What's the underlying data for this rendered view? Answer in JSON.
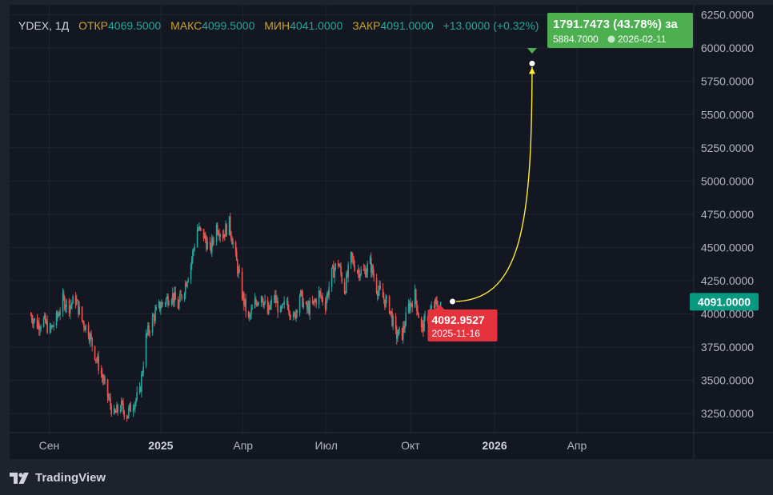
{
  "header": {
    "symbol": "YDEX, 1Д",
    "open_label": "ОТКР",
    "open": "4069.5000",
    "high_label": "МАКС",
    "high": "4099.5000",
    "low_label": "МИН",
    "low": "4041.0000",
    "close_label": "ЗАКР",
    "close": "4091.0000",
    "change": "+13.0000 (+0.32%)"
  },
  "footer": {
    "brand": "TradingView",
    "logo_icon": "tradingview-logo-icon"
  },
  "colors": {
    "up": "#26a69a",
    "down": "#ef5350",
    "forecast": "#ffeb3b",
    "target_bg": "#4caf50",
    "start_bg": "#e5333d",
    "last_price_bg": "#089981"
  },
  "chart_data": {
    "type": "candlestick",
    "ylim": [
      3100,
      6290
    ],
    "y_ticks": [
      "6250.0000",
      "6000.0000",
      "5750.0000",
      "5500.0000",
      "5250.0000",
      "5000.0000",
      "4750.0000",
      "4500.0000",
      "4250.0000",
      "4000.0000",
      "3750.0000",
      "3500.0000",
      "3250.0000"
    ],
    "y_tick_values": [
      6250,
      6000,
      5750,
      5500,
      5250,
      5000,
      4750,
      4500,
      4250,
      4000,
      3750,
      3500,
      3250
    ],
    "x_ticks": [
      {
        "label": "Сен",
        "date": "2024-09-01",
        "bold": false
      },
      {
        "label": "2025",
        "date": "2025-01-01",
        "bold": true
      },
      {
        "label": "Апр",
        "date": "2025-04-01",
        "bold": false
      },
      {
        "label": "Июл",
        "date": "2025-07-01",
        "bold": false
      },
      {
        "label": "Окт",
        "date": "2025-10-01",
        "bold": false
      },
      {
        "label": "2026",
        "date": "2026-01-01",
        "bold": true
      },
      {
        "label": "Апр",
        "date": "2026-04-01",
        "bold": false
      }
    ],
    "close_path": [
      [
        "2024-08-12",
        3990
      ],
      [
        "2024-08-19",
        3920
      ],
      [
        "2024-08-26",
        3950
      ],
      [
        "2024-09-02",
        3870
      ],
      [
        "2024-09-09",
        3960
      ],
      [
        "2024-09-16",
        4100
      ],
      [
        "2024-09-23",
        4060
      ],
      [
        "2024-09-30",
        4110
      ],
      [
        "2024-10-07",
        3950
      ],
      [
        "2024-10-14",
        3870
      ],
      [
        "2024-10-21",
        3700
      ],
      [
        "2024-10-28",
        3550
      ],
      [
        "2024-11-04",
        3380
      ],
      [
        "2024-11-11",
        3230
      ],
      [
        "2024-11-18",
        3310
      ],
      [
        "2024-11-25",
        3240
      ],
      [
        "2024-12-02",
        3330
      ],
      [
        "2024-12-09",
        3400
      ],
      [
        "2024-12-16",
        3820
      ],
      [
        "2024-12-23",
        3960
      ],
      [
        "2024-12-30",
        4050
      ],
      [
        "2025-01-06",
        4100
      ],
      [
        "2025-01-13",
        4150
      ],
      [
        "2025-01-20",
        4060
      ],
      [
        "2025-01-27",
        4200
      ],
      [
        "2025-02-03",
        4380
      ],
      [
        "2025-02-10",
        4640
      ],
      [
        "2025-02-17",
        4590
      ],
      [
        "2025-02-24",
        4470
      ],
      [
        "2025-03-03",
        4660
      ],
      [
        "2025-03-10",
        4600
      ],
      [
        "2025-03-17",
        4680
      ],
      [
        "2025-03-24",
        4420
      ],
      [
        "2025-03-31",
        4150
      ],
      [
        "2025-04-07",
        3950
      ],
      [
        "2025-04-14",
        4080
      ],
      [
        "2025-04-21",
        4150
      ],
      [
        "2025-04-28",
        4000
      ],
      [
        "2025-05-05",
        4130
      ],
      [
        "2025-05-12",
        4000
      ],
      [
        "2025-05-19",
        4100
      ],
      [
        "2025-05-26",
        3950
      ],
      [
        "2025-06-02",
        4150
      ],
      [
        "2025-06-09",
        4030
      ],
      [
        "2025-06-16",
        4060
      ],
      [
        "2025-06-23",
        4150
      ],
      [
        "2025-06-30",
        4080
      ],
      [
        "2025-07-07",
        4300
      ],
      [
        "2025-07-14",
        4390
      ],
      [
        "2025-07-21",
        4180
      ],
      [
        "2025-07-28",
        4420
      ],
      [
        "2025-08-04",
        4330
      ],
      [
        "2025-08-11",
        4310
      ],
      [
        "2025-08-18",
        4380
      ],
      [
        "2025-08-25",
        4200
      ],
      [
        "2025-09-01",
        4120
      ],
      [
        "2025-09-08",
        4050
      ],
      [
        "2025-09-15",
        3840
      ],
      [
        "2025-09-22",
        3850
      ],
      [
        "2025-09-29",
        4050
      ],
      [
        "2025-10-06",
        4140
      ],
      [
        "2025-10-13",
        3880
      ],
      [
        "2025-10-20",
        3990
      ],
      [
        "2025-10-27",
        4060
      ],
      [
        "2025-11-03",
        4091
      ]
    ],
    "forecast": {
      "from": {
        "date": "2025-11-16",
        "value": 4092.9527,
        "label": "4092.9527",
        "date_label": "2025-11-16"
      },
      "to": {
        "date": "2026-02-11",
        "value": 5884.7,
        "label": "5884.7000",
        "date_label": "2026-02-11"
      },
      "change_label": "1791.7473 (43.78%) за"
    },
    "last_price": {
      "value": 4091,
      "label": "4091.0000"
    }
  }
}
